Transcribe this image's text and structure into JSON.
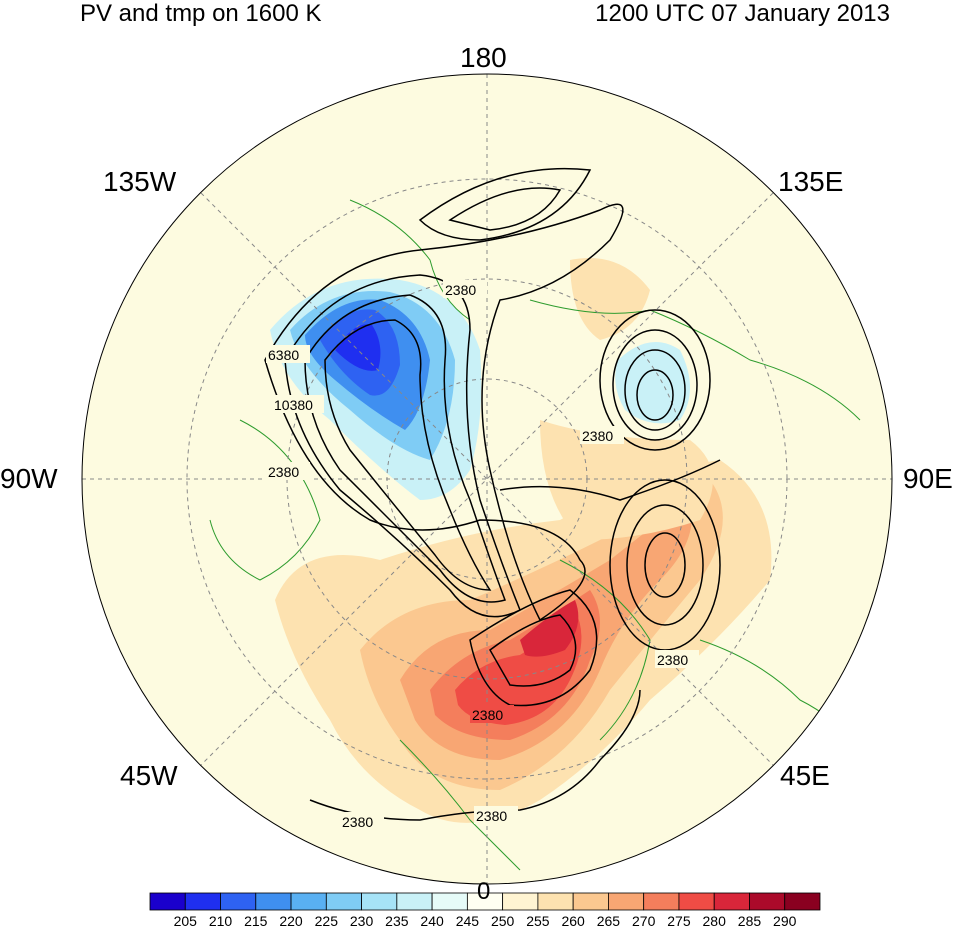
{
  "title_left": "PV and tmp on 1600 K",
  "title_right": "1200 UTC 07 January 2013",
  "longitude_labels": {
    "top": "180",
    "bottom": "0",
    "left": "90W",
    "right": "90E",
    "top_left": "135W",
    "top_right": "135E",
    "bottom_left": "45W",
    "bottom_right": "45E"
  },
  "contour_labels": [
    "2380",
    "6380",
    "10380",
    "2380",
    "2380",
    "2380",
    "2380",
    "2380",
    "2380"
  ],
  "colorbar": {
    "ticks": [
      "205",
      "210",
      "215",
      "220",
      "225",
      "230",
      "235",
      "240",
      "245",
      "250",
      "255",
      "260",
      "265",
      "270",
      "275",
      "280",
      "285",
      "290"
    ],
    "colors": [
      "#1a00cc",
      "#1f2ff0",
      "#2e62f2",
      "#3f8ff0",
      "#59b0f2",
      "#7fccf5",
      "#a6e3f7",
      "#c9f1f7",
      "#e6fbf8",
      "#fffff2",
      "#fff4d2",
      "#fde2b0",
      "#fbc890",
      "#f8a673",
      "#f47e5c",
      "#ef4c45",
      "#d9263a",
      "#ab0a2a",
      "#8a0020"
    ],
    "background_color": "#fdfbe0"
  }
}
